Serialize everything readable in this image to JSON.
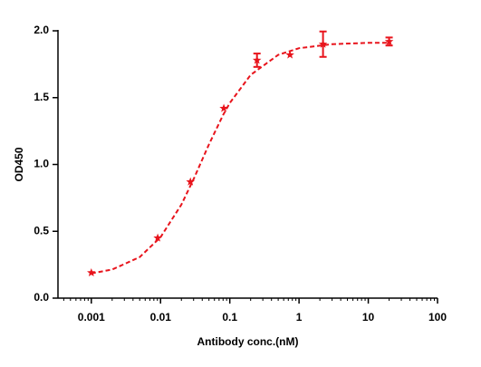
{
  "chart_data": {
    "type": "scatter",
    "x_label": "Antibody conc.(nM)",
    "y_label": "OD450",
    "x": [
      0.001,
      0.0091,
      0.027,
      0.082,
      0.247,
      0.74,
      2.22,
      20
    ],
    "values": [
      0.19,
      0.45,
      0.87,
      1.42,
      1.78,
      1.82,
      1.9,
      1.92
    ],
    "error": [
      null,
      null,
      null,
      null,
      0.05,
      null,
      0.095,
      0.03
    ],
    "color": "#e8141c",
    "log_x": true,
    "xlim": [
      0.00033,
      100
    ],
    "ylim": [
      0,
      2
    ],
    "xticks": [
      0.001,
      0.01,
      0.1,
      1,
      10,
      100
    ],
    "yticks": [
      {
        "value": 0,
        "label": "0.0"
      },
      0.5,
      {
        "value": 1,
        "label": "1.0"
      },
      1.5,
      {
        "value": 2,
        "label": "2.0"
      }
    ],
    "fit": {
      "x": [
        0.001,
        0.002,
        0.005,
        0.01,
        0.02,
        0.03,
        0.05,
        0.08,
        0.1,
        0.2,
        0.5,
        1,
        3,
        10,
        20
      ],
      "values": [
        0.185,
        0.214,
        0.307,
        0.456,
        0.7,
        0.89,
        1.15,
        1.37,
        1.46,
        1.67,
        1.82,
        1.87,
        1.9,
        1.91,
        1.91
      ],
      "dashed": true
    }
  }
}
